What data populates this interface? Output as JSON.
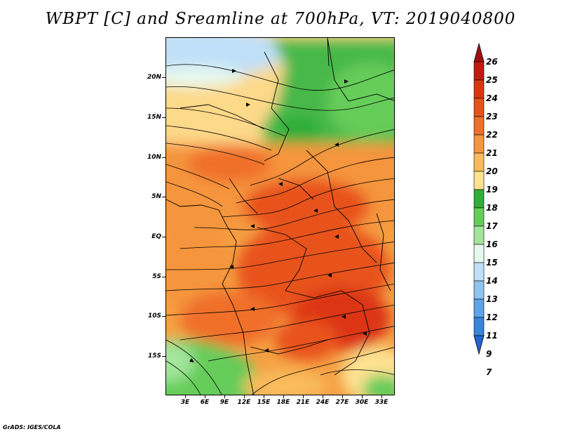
{
  "title": "WBPT [C] and Sreamline at 700hPa, VT: 2019040800",
  "credit": "GrADS: IGES/COLA",
  "map": {
    "lat_labels": [
      "20N",
      "15N",
      "10N",
      "5N",
      "EQ",
      "5S",
      "10S",
      "15S"
    ],
    "lon_labels": [
      "3E",
      "6E",
      "9E",
      "12E",
      "15E",
      "18E",
      "21E",
      "24E",
      "27E",
      "30E",
      "33E"
    ],
    "lat_range": [
      -19,
      24
    ],
    "lon_range": [
      0,
      35
    ]
  },
  "colorbar": {
    "labels": [
      "26",
      "25",
      "24",
      "23",
      "22",
      "21",
      "20",
      "19",
      "18",
      "17",
      "16",
      "15",
      "14",
      "13",
      "12",
      "11",
      "9",
      "7"
    ],
    "colors": [
      "#a01010",
      "#c41a12",
      "#dc3512",
      "#e8521a",
      "#f0702a",
      "#f5953c",
      "#f9bb5c",
      "#fde292",
      "#2fae3a",
      "#66cc5a",
      "#a3e59a",
      "#e6f8ee",
      "#bfe0f8",
      "#8fc4ef",
      "#5ea4e6",
      "#3b84dc",
      "#2563d0"
    ]
  }
}
